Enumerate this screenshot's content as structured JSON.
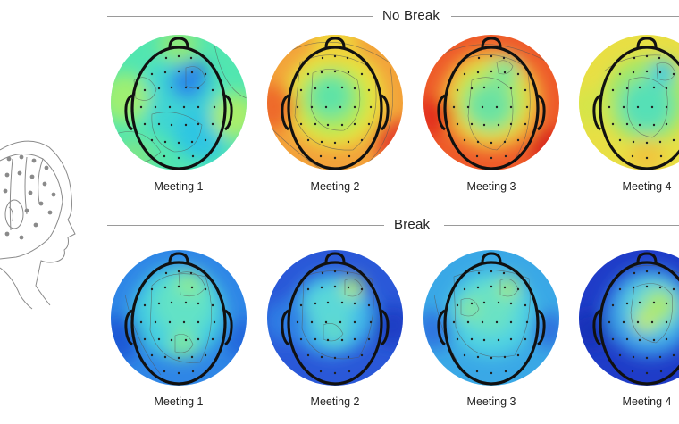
{
  "sections": {
    "no_break": {
      "title": "No Break",
      "meetings": [
        {
          "label": "Meeting 1"
        },
        {
          "label": "Meeting 2"
        },
        {
          "label": "Meeting 3"
        },
        {
          "label": "Meeting 4"
        }
      ]
    },
    "break": {
      "title": "Break",
      "meetings": [
        {
          "label": "Meeting 1"
        },
        {
          "label": "Meeting 2"
        },
        {
          "label": "Meeting 3"
        },
        {
          "label": "Meeting 4"
        }
      ]
    }
  },
  "colors": {
    "rule": "#9a9a9a",
    "head_outline": "#111111",
    "sketch": "#8a8a8a"
  },
  "icons": {
    "figure": "eeg-cap-head-illustration",
    "map": "scalp-topography-head-icon"
  }
}
